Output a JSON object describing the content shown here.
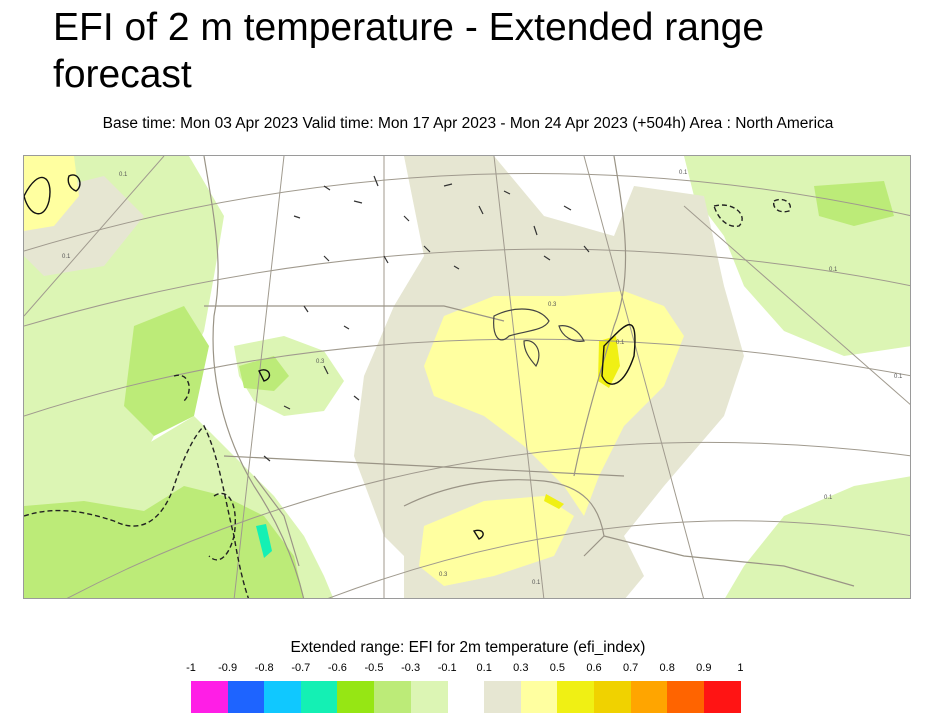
{
  "title": "EFI of 2 m temperature - Extended range forecast",
  "subtitle": "Base time: Mon 03 Apr 2023 Valid time: Mon 17 Apr 2023 - Mon 24 Apr 2023 (+504h) Area : North America",
  "map": {
    "region": "North America",
    "contour_labels": [
      "0.1",
      "0.1",
      "0.1",
      "0.1",
      "0.3",
      "0.1",
      "0.3",
      "0.1",
      "0.1",
      "0.1",
      "0.3"
    ]
  },
  "legend": {
    "title": "Extended range: EFI for 2m temperature (efi_index)",
    "ticks": [
      "-1",
      "-0.9",
      "-0.8",
      "-0.7",
      "-0.6",
      "-0.5",
      "-0.3",
      "-0.1",
      "0.1",
      "0.3",
      "0.5",
      "0.6",
      "0.7",
      "0.8",
      "0.9",
      "1"
    ],
    "colors": [
      "#ff1ee6",
      "#1e64ff",
      "#10c8ff",
      "#14f0b4",
      "#96e614",
      "#bceb78",
      "#dcf5b4",
      "#ffffff",
      "#e6e6d2",
      "#ffffa0",
      "#f0f014",
      "#f0d200",
      "#ffa500",
      "#ff6400",
      "#ff1414"
    ]
  }
}
